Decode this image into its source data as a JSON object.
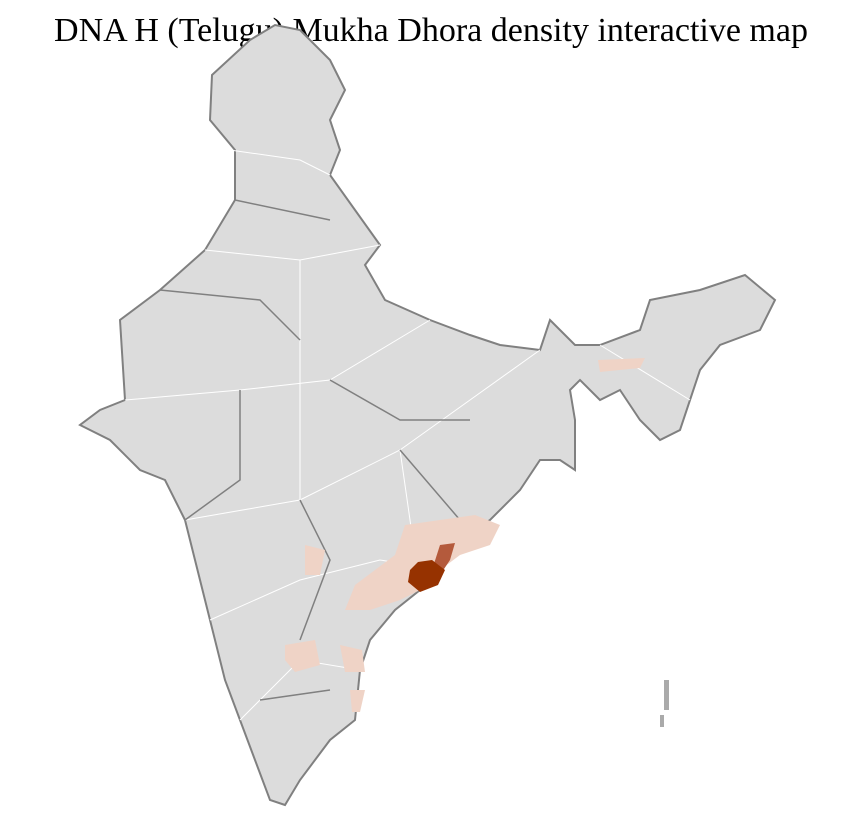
{
  "title": "DNA H (Telugu) Mukha Dhora density interactive map",
  "colors": {
    "background": "#dcdcdc",
    "border": "#808080",
    "district_border": "#ffffff",
    "low_density": "#efd3c6",
    "mid_density": "#b45a3c",
    "high_density": "#963200"
  }
}
